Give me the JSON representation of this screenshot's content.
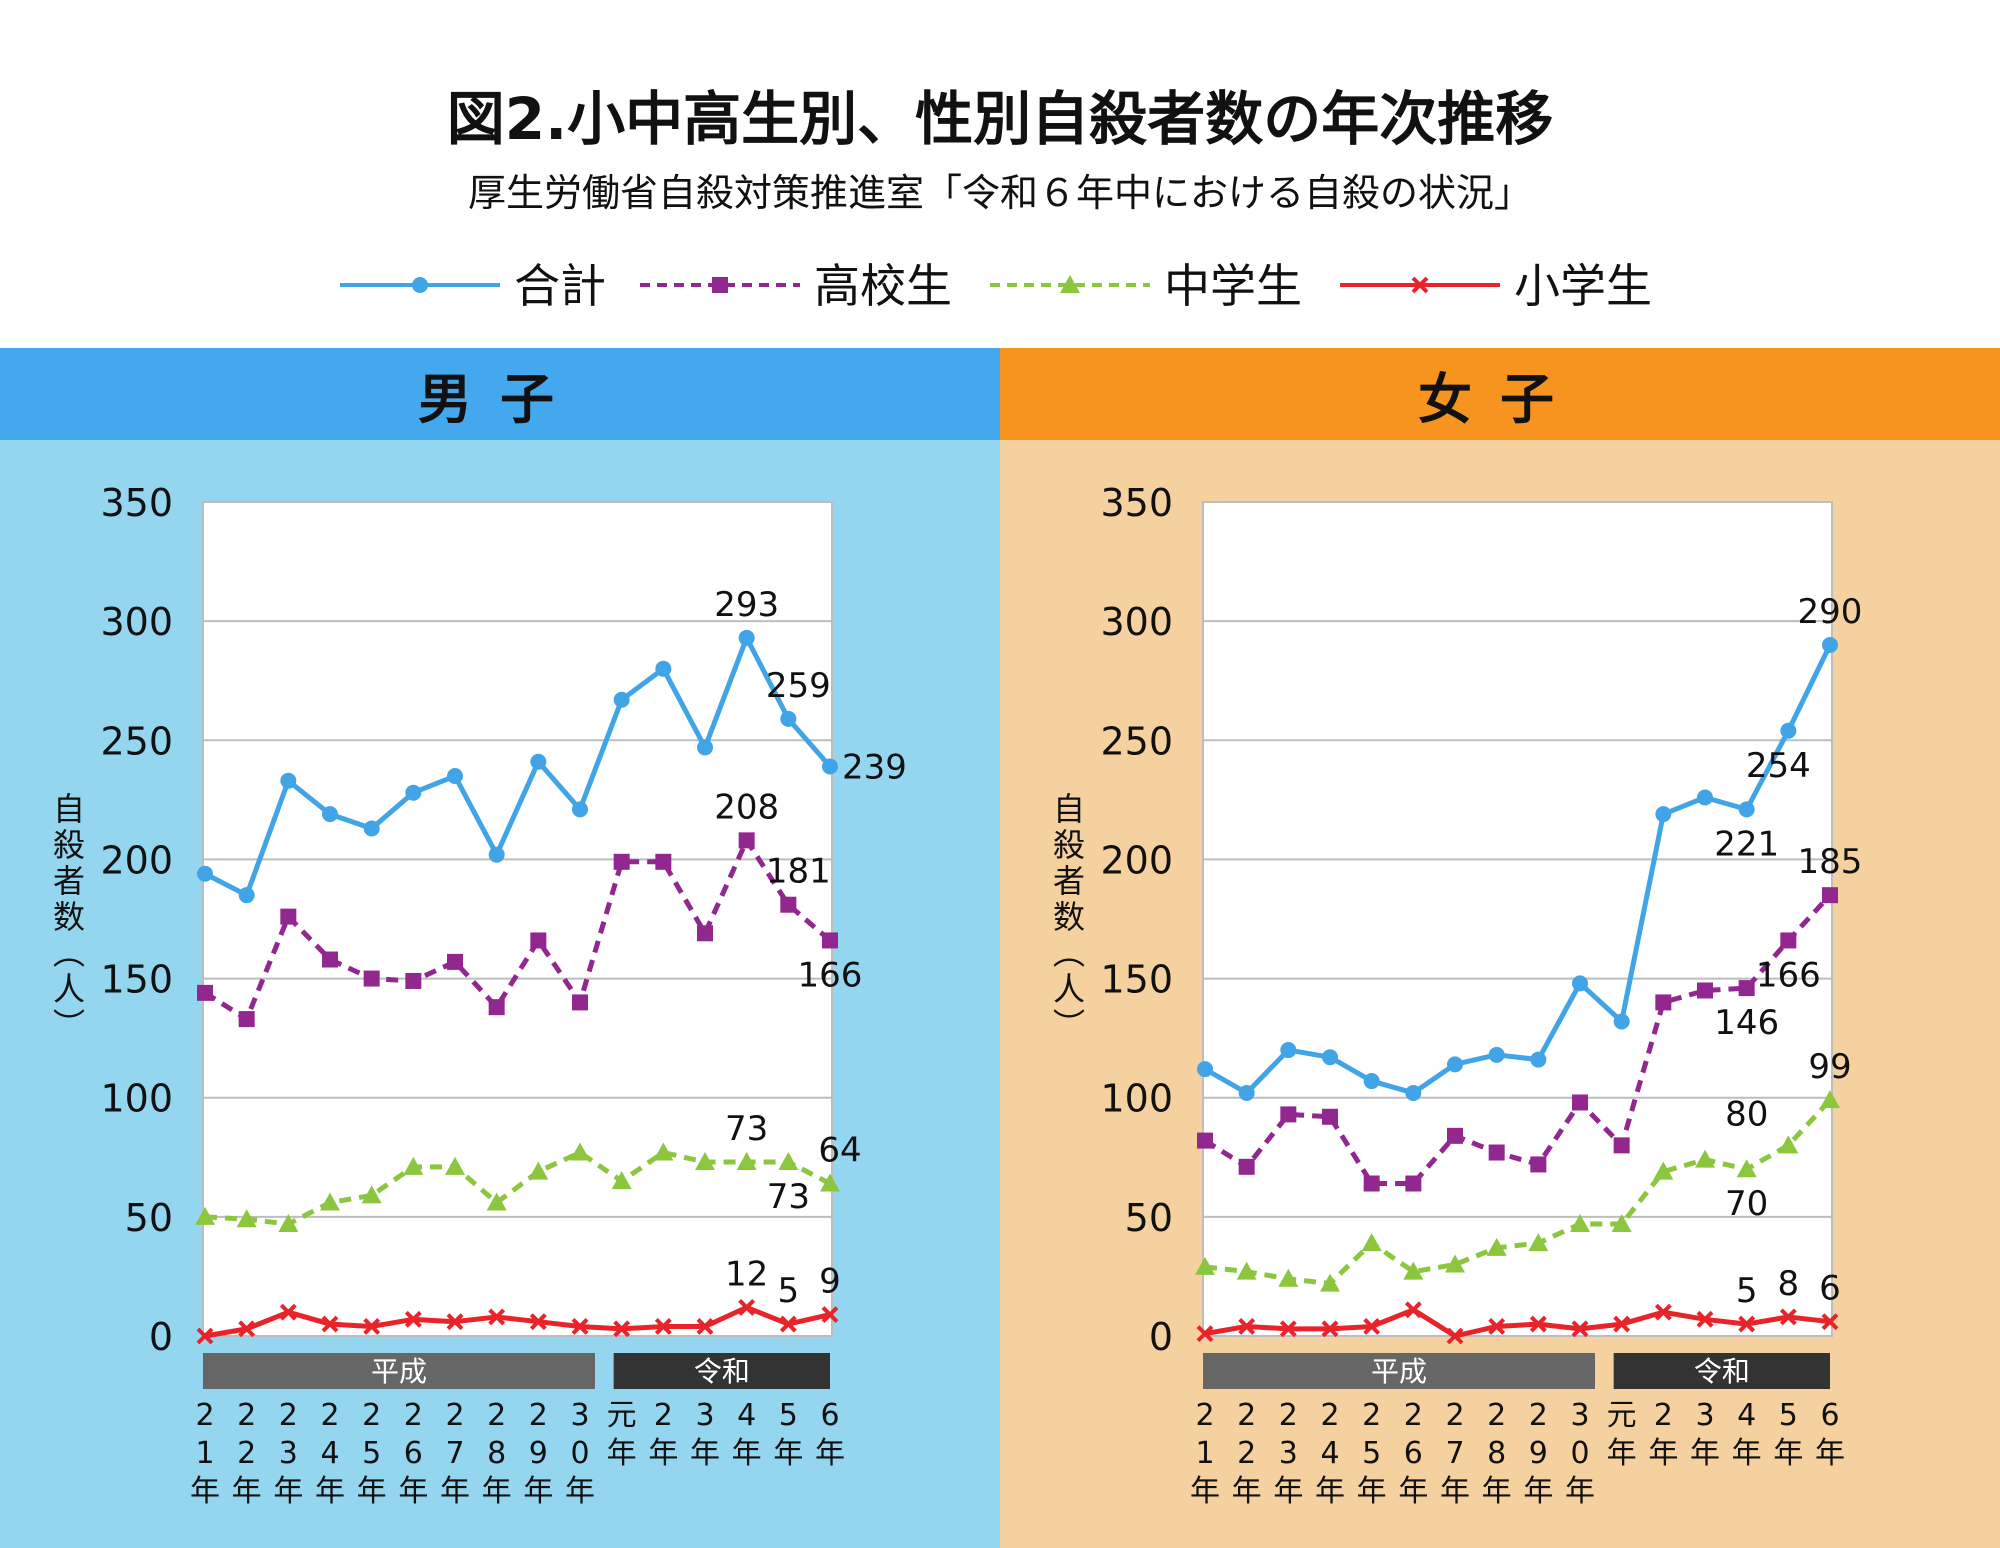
{
  "title": "図2.小中高生別、性別自殺者数の年次推移",
  "subtitle": "厚生労働省自殺対策推進室「令和６年中における自殺の状況」",
  "colors": {
    "total": "#41a4e6",
    "high": "#92278f",
    "middle": "#8cc63f",
    "elementary": "#e8232a"
  },
  "chart_data": [
    {
      "type": "line",
      "panel_title": "男子",
      "ylabel": "自殺者数（人）",
      "ylim": [
        0,
        350
      ],
      "yticks": [
        0,
        50,
        100,
        150,
        200,
        250,
        300,
        350
      ],
      "categories": [
        "21年",
        "22年",
        "23年",
        "24年",
        "25年",
        "26年",
        "27年",
        "28年",
        "29年",
        "30年",
        "元年",
        "2年",
        "3年",
        "4年",
        "5年",
        "6年"
      ],
      "era_bands": [
        {
          "label": "平成",
          "from": 0,
          "to": 9
        },
        {
          "label": "令和",
          "from": 10,
          "to": 15
        }
      ],
      "series": [
        {
          "name": "合計",
          "key": "total",
          "marker": "circle",
          "dash": false,
          "values": [
            194,
            185,
            233,
            219,
            213,
            228,
            235,
            202,
            241,
            221,
            267,
            280,
            247,
            293,
            259,
            239
          ]
        },
        {
          "name": "高校生",
          "key": "high",
          "marker": "square",
          "dash": true,
          "values": [
            144,
            133,
            176,
            158,
            150,
            149,
            157,
            138,
            166,
            140,
            199,
            199,
            169,
            208,
            181,
            166
          ]
        },
        {
          "name": "中学生",
          "key": "middle",
          "marker": "triangle",
          "dash": true,
          "values": [
            50,
            49,
            47,
            56,
            59,
            71,
            71,
            56,
            69,
            77,
            65,
            77,
            73,
            73,
            73,
            64
          ]
        },
        {
          "name": "小学生",
          "key": "elementary",
          "marker": "x",
          "dash": false,
          "values": [
            0,
            3,
            10,
            5,
            4,
            7,
            6,
            8,
            6,
            4,
            3,
            4,
            4,
            12,
            5,
            9
          ]
        }
      ],
      "data_labels": [
        {
          "text": "293",
          "series": 0,
          "index": 13,
          "pos": "above"
        },
        {
          "text": "259",
          "series": 0,
          "index": 14,
          "pos": "upright"
        },
        {
          "text": "239",
          "series": 0,
          "index": 15,
          "pos": "right"
        },
        {
          "text": "208",
          "series": 1,
          "index": 13,
          "pos": "above"
        },
        {
          "text": "181",
          "series": 1,
          "index": 14,
          "pos": "upright"
        },
        {
          "text": "166",
          "series": 1,
          "index": 15,
          "pos": "below"
        },
        {
          "text": "73",
          "series": 2,
          "index": 13,
          "pos": "above"
        },
        {
          "text": "73",
          "series": 2,
          "index": 14,
          "pos": "below"
        },
        {
          "text": "64",
          "series": 2,
          "index": 15,
          "pos": "upright"
        },
        {
          "text": "12",
          "series": 3,
          "index": 13,
          "pos": "above"
        },
        {
          "text": "5",
          "series": 3,
          "index": 14,
          "pos": "above"
        },
        {
          "text": "9",
          "series": 3,
          "index": 15,
          "pos": "above"
        }
      ]
    },
    {
      "type": "line",
      "panel_title": "女子",
      "ylabel": "自殺者数（人）",
      "ylim": [
        0,
        350
      ],
      "yticks": [
        0,
        50,
        100,
        150,
        200,
        250,
        300,
        350
      ],
      "categories": [
        "21年",
        "22年",
        "23年",
        "24年",
        "25年",
        "26年",
        "27年",
        "28年",
        "29年",
        "30年",
        "元年",
        "2年",
        "3年",
        "4年",
        "5年",
        "6年"
      ],
      "era_bands": [
        {
          "label": "平成",
          "from": 0,
          "to": 9
        },
        {
          "label": "令和",
          "from": 10,
          "to": 15
        }
      ],
      "series": [
        {
          "name": "合計",
          "key": "total",
          "marker": "circle",
          "dash": false,
          "values": [
            112,
            102,
            120,
            117,
            107,
            102,
            114,
            118,
            116,
            148,
            132,
            219,
            226,
            221,
            254,
            290
          ]
        },
        {
          "name": "高校生",
          "key": "high",
          "marker": "square",
          "dash": true,
          "values": [
            82,
            71,
            93,
            92,
            64,
            64,
            84,
            77,
            72,
            98,
            80,
            140,
            145,
            146,
            166,
            185
          ]
        },
        {
          "name": "中学生",
          "key": "middle",
          "marker": "triangle",
          "dash": true,
          "values": [
            29,
            27,
            24,
            22,
            39,
            27,
            30,
            37,
            39,
            47,
            47,
            69,
            74,
            70,
            80,
            99
          ]
        },
        {
          "name": "小学生",
          "key": "elementary",
          "marker": "x",
          "dash": false,
          "values": [
            1,
            4,
            3,
            3,
            4,
            11,
            0,
            4,
            5,
            3,
            5,
            10,
            7,
            5,
            8,
            6
          ]
        }
      ],
      "data_labels": [
        {
          "text": "290",
          "series": 0,
          "index": 15,
          "pos": "above"
        },
        {
          "text": "254",
          "series": 0,
          "index": 14,
          "pos": "belowright"
        },
        {
          "text": "221",
          "series": 0,
          "index": 13,
          "pos": "below"
        },
        {
          "text": "185",
          "series": 1,
          "index": 15,
          "pos": "above"
        },
        {
          "text": "166",
          "series": 1,
          "index": 14,
          "pos": "below"
        },
        {
          "text": "146",
          "series": 1,
          "index": 13,
          "pos": "below"
        },
        {
          "text": "99",
          "series": 2,
          "index": 15,
          "pos": "above"
        },
        {
          "text": "80",
          "series": 2,
          "index": 14,
          "pos": "upleft"
        },
        {
          "text": "70",
          "series": 2,
          "index": 13,
          "pos": "below"
        },
        {
          "text": "5",
          "series": 3,
          "index": 13,
          "pos": "above"
        },
        {
          "text": "8",
          "series": 3,
          "index": 14,
          "pos": "above"
        },
        {
          "text": "6",
          "series": 3,
          "index": 15,
          "pos": "above"
        }
      ]
    }
  ]
}
